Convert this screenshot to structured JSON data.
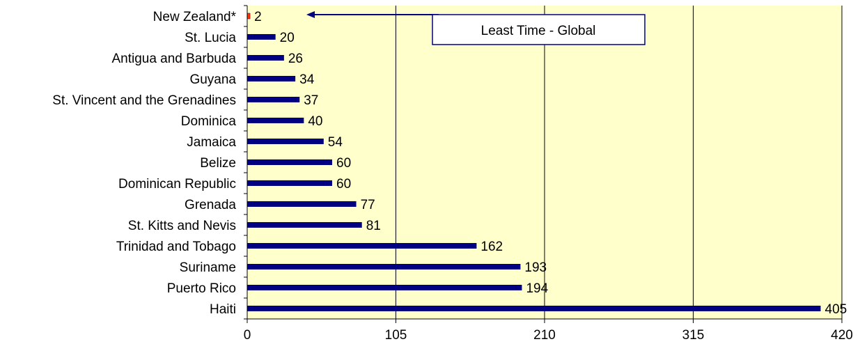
{
  "chart_data": {
    "type": "bar",
    "orientation": "horizontal",
    "categories": [
      "New Zealand*",
      "St. Lucia",
      "Antigua and Barbuda",
      "Guyana",
      "St. Vincent and the Grenadines",
      "Dominica",
      "Jamaica",
      "Belize",
      "Dominican Republic",
      "Grenada",
      "St. Kitts and Nevis",
      "Trinidad and Tobago",
      "Suriname",
      "Puerto Rico",
      "Haiti"
    ],
    "values": [
      2,
      20,
      26,
      34,
      37,
      40,
      54,
      60,
      60,
      77,
      81,
      162,
      193,
      194,
      405
    ],
    "value_labels": [
      "2",
      "20",
      "26",
      "34",
      "37",
      "40",
      "54",
      "60",
      "60",
      "77",
      "81",
      "162",
      "193",
      "194",
      "405"
    ],
    "highlight_category": "New Zealand*",
    "xlim": [
      0,
      420
    ],
    "xticks": [
      0,
      105,
      210,
      315,
      420
    ],
    "xtick_labels": [
      "0",
      "105",
      "210",
      "315",
      "420"
    ],
    "grid": "vertical",
    "title": "",
    "xlabel": "",
    "ylabel": "",
    "annotation": {
      "text": "Least Time - Global",
      "points_to": "New Zealand*"
    },
    "colors": {
      "bar": "#000080",
      "highlight_bar": "#ff3300",
      "plot_background": "#ffffcc",
      "grid": "#000000",
      "annotation_border": "#000080"
    }
  }
}
